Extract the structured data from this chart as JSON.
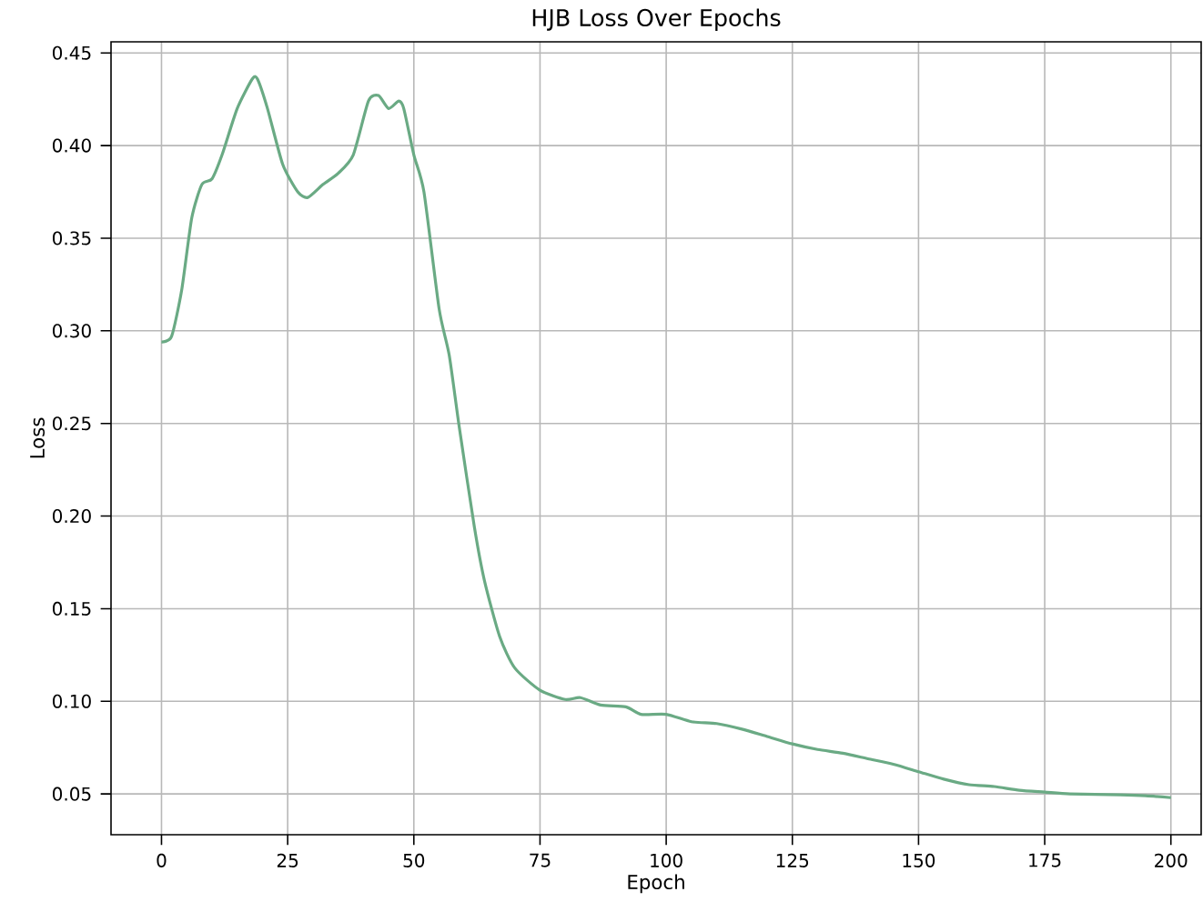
{
  "chart_data": {
    "type": "line",
    "title": "HJB Loss Over Epochs",
    "xlabel": "Epoch",
    "ylabel": "Loss",
    "x": [
      0,
      2,
      4,
      6,
      8,
      10,
      12,
      15,
      18,
      19,
      21,
      24,
      27,
      29,
      32,
      35,
      38,
      41,
      43,
      45,
      47,
      48,
      50,
      52,
      55,
      57,
      59,
      62,
      64,
      67,
      70,
      75,
      80,
      83,
      87,
      92,
      95,
      100,
      105,
      110,
      115,
      120,
      125,
      130,
      135,
      140,
      145,
      150,
      155,
      160,
      165,
      170,
      175,
      180,
      190,
      195,
      200
    ],
    "series": [
      {
        "color": "#6aaa84",
        "values": [
          0.294,
          0.297,
          0.322,
          0.361,
          0.379,
          0.382,
          0.395,
          0.42,
          0.436,
          0.436,
          0.42,
          0.39,
          0.375,
          0.372,
          0.379,
          0.385,
          0.395,
          0.424,
          0.427,
          0.42,
          0.424,
          0.42,
          0.395,
          0.375,
          0.312,
          0.287,
          0.248,
          0.194,
          0.165,
          0.135,
          0.118,
          0.106,
          0.101,
          0.102,
          0.098,
          0.097,
          0.093,
          0.093,
          0.089,
          0.088,
          0.085,
          0.081,
          0.077,
          0.074,
          0.072,
          0.069,
          0.066,
          0.062,
          0.058,
          0.055,
          0.054,
          0.052,
          0.051,
          0.05,
          0.0495,
          0.049,
          0.048
        ]
      }
    ],
    "xlim": [
      -10,
      206
    ],
    "ylim": [
      0.028,
      0.456
    ],
    "xticks": [
      0,
      25,
      50,
      75,
      100,
      125,
      150,
      175,
      200
    ],
    "yticks": [
      {
        "value": 0.05,
        "label": "0.05"
      },
      {
        "value": 0.1,
        "label": "0.10"
      },
      {
        "value": 0.15,
        "label": "0.15"
      },
      {
        "value": 0.2,
        "label": "0.20"
      },
      {
        "value": 0.25,
        "label": "0.25"
      },
      {
        "value": 0.3,
        "label": "0.30"
      },
      {
        "value": 0.35,
        "label": "0.35"
      },
      {
        "value": 0.4,
        "label": "0.40"
      },
      {
        "value": 0.45,
        "label": "0.45"
      }
    ],
    "grid": true,
    "line_style": "solid"
  }
}
